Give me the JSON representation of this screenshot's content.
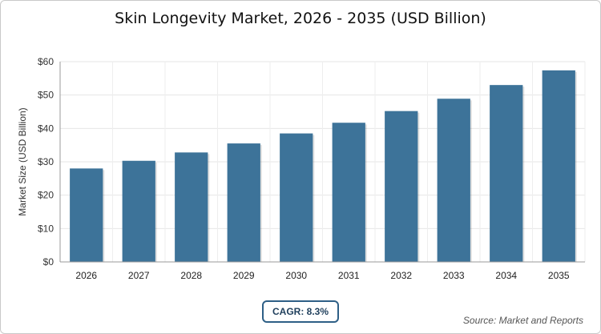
{
  "chart_data": {
    "type": "bar",
    "title": "Skin Longevity Market, 2026 - 2035 (USD Billion)",
    "ylabel": "Market Size (USD Billion)",
    "categories": [
      "2026",
      "2027",
      "2028",
      "2029",
      "2030",
      "2031",
      "2032",
      "2033",
      "2034",
      "2035"
    ],
    "values": [
      28.0,
      30.3,
      32.8,
      35.5,
      38.5,
      41.7,
      45.2,
      48.9,
      53.0,
      57.4
    ],
    "ylim": [
      0,
      60
    ],
    "yticks": [
      0,
      10,
      20,
      30,
      40,
      50,
      60
    ],
    "ytick_labels": [
      "$0",
      "$10",
      "$20",
      "$30",
      "$40",
      "$50",
      "$60"
    ],
    "grid": true,
    "bar_color": "#3d7399"
  },
  "annotations": {
    "cagr": "CAGR: 8.3%",
    "source": "Source: Market and Reports"
  }
}
